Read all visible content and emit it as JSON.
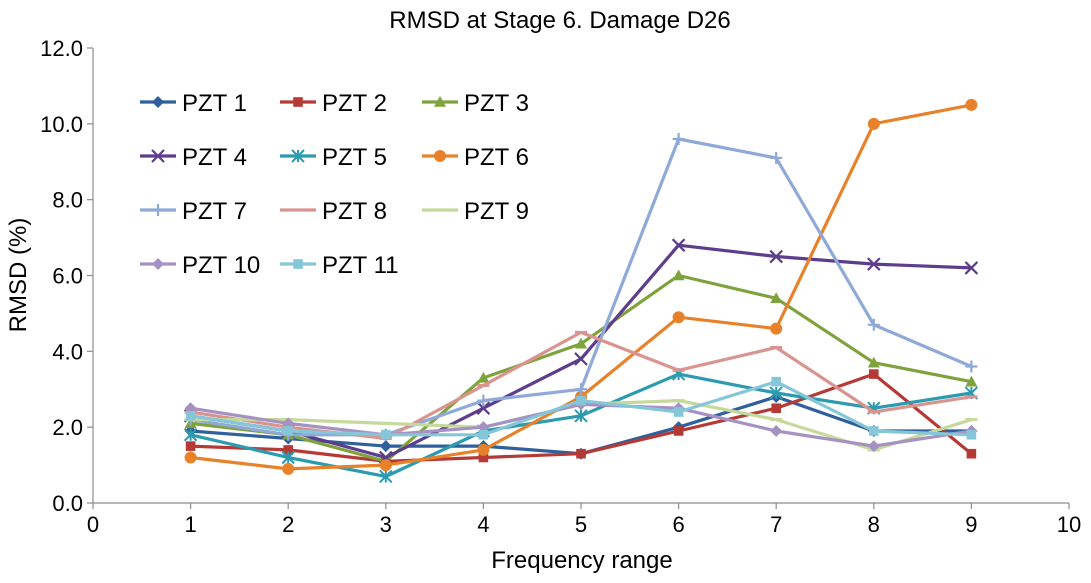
{
  "chart_data": {
    "type": "line",
    "title": "RMSD at Stage 6. Damage D26",
    "xlabel": "Frequency range",
    "ylabel": "RMSD (%)",
    "xlim": [
      0,
      10
    ],
    "ylim": [
      0,
      12
    ],
    "x_ticks": [
      "0",
      "1",
      "2",
      "3",
      "4",
      "5",
      "6",
      "7",
      "8",
      "9",
      "10"
    ],
    "y_ticks": [
      "0.0",
      "2.0",
      "4.0",
      "6.0",
      "8.0",
      "10.0",
      "12.0"
    ],
    "grid": false,
    "legend_position": "top-left",
    "x": [
      1,
      2,
      3,
      4,
      5,
      6,
      7,
      8,
      9
    ],
    "series": [
      {
        "name": "PZT 1",
        "color": "#2f5f9c",
        "marker": "diamond",
        "values": [
          1.9,
          1.7,
          1.5,
          1.5,
          1.3,
          2.0,
          2.8,
          1.9,
          1.9
        ]
      },
      {
        "name": "PZT 2",
        "color": "#b53a36",
        "marker": "square",
        "values": [
          1.5,
          1.4,
          1.1,
          1.2,
          1.3,
          1.9,
          2.5,
          3.4,
          1.3
        ]
      },
      {
        "name": "PZT 3",
        "color": "#7fa33c",
        "marker": "triangle",
        "values": [
          2.1,
          1.8,
          1.1,
          3.3,
          4.2,
          6.0,
          5.4,
          3.7,
          3.2
        ]
      },
      {
        "name": "PZT 4",
        "color": "#5d3d8c",
        "marker": "x",
        "values": [
          2.3,
          1.9,
          1.2,
          2.5,
          3.8,
          6.8,
          6.5,
          6.3,
          6.2
        ]
      },
      {
        "name": "PZT 5",
        "color": "#2c9bb0",
        "marker": "star",
        "values": [
          1.8,
          1.2,
          0.7,
          1.9,
          2.3,
          3.4,
          2.9,
          2.5,
          2.9
        ]
      },
      {
        "name": "PZT 6",
        "color": "#e8822a",
        "marker": "circle",
        "values": [
          1.2,
          0.9,
          1.0,
          1.4,
          2.8,
          4.9,
          4.6,
          10.0,
          10.5
        ]
      },
      {
        "name": "PZT 7",
        "color": "#8fa9d8",
        "marker": "plus",
        "values": [
          2.2,
          1.8,
          1.8,
          2.7,
          3.0,
          9.6,
          9.1,
          4.7,
          3.6
        ]
      },
      {
        "name": "PZT 8",
        "color": "#d99490",
        "marker": "dash",
        "values": [
          2.4,
          2.0,
          1.7,
          3.1,
          4.5,
          3.5,
          4.1,
          2.4,
          2.8
        ]
      },
      {
        "name": "PZT 9",
        "color": "#c5d99a",
        "marker": "dash",
        "values": [
          2.2,
          2.2,
          2.1,
          2.0,
          2.6,
          2.7,
          2.2,
          1.4,
          2.2
        ]
      },
      {
        "name": "PZT 10",
        "color": "#a592c2",
        "marker": "diamond",
        "values": [
          2.5,
          2.1,
          1.8,
          2.0,
          2.6,
          2.5,
          1.9,
          1.5,
          1.9
        ]
      },
      {
        "name": "PZT 11",
        "color": "#86c6d9",
        "marker": "square",
        "values": [
          2.3,
          1.9,
          1.8,
          1.8,
          2.7,
          2.4,
          3.2,
          1.9,
          1.8
        ]
      }
    ]
  }
}
